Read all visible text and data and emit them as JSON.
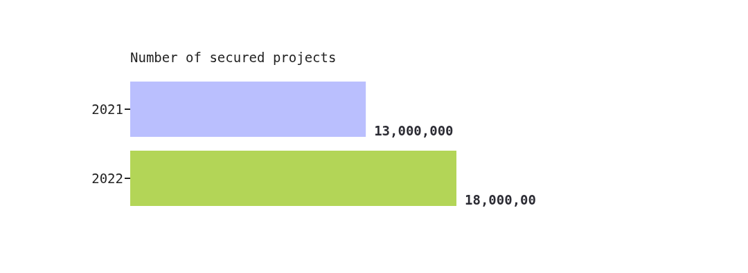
{
  "chart_data": {
    "type": "bar",
    "orientation": "horizontal",
    "title": "Number of secured projects",
    "categories": [
      "2021",
      "2022"
    ],
    "values": [
      13000000,
      18000000
    ],
    "colors": [
      "#babffe",
      "#b3d557"
    ],
    "value_labels": [
      "13,000,000",
      "18,000,00"
    ],
    "grid": false,
    "legend": false
  }
}
